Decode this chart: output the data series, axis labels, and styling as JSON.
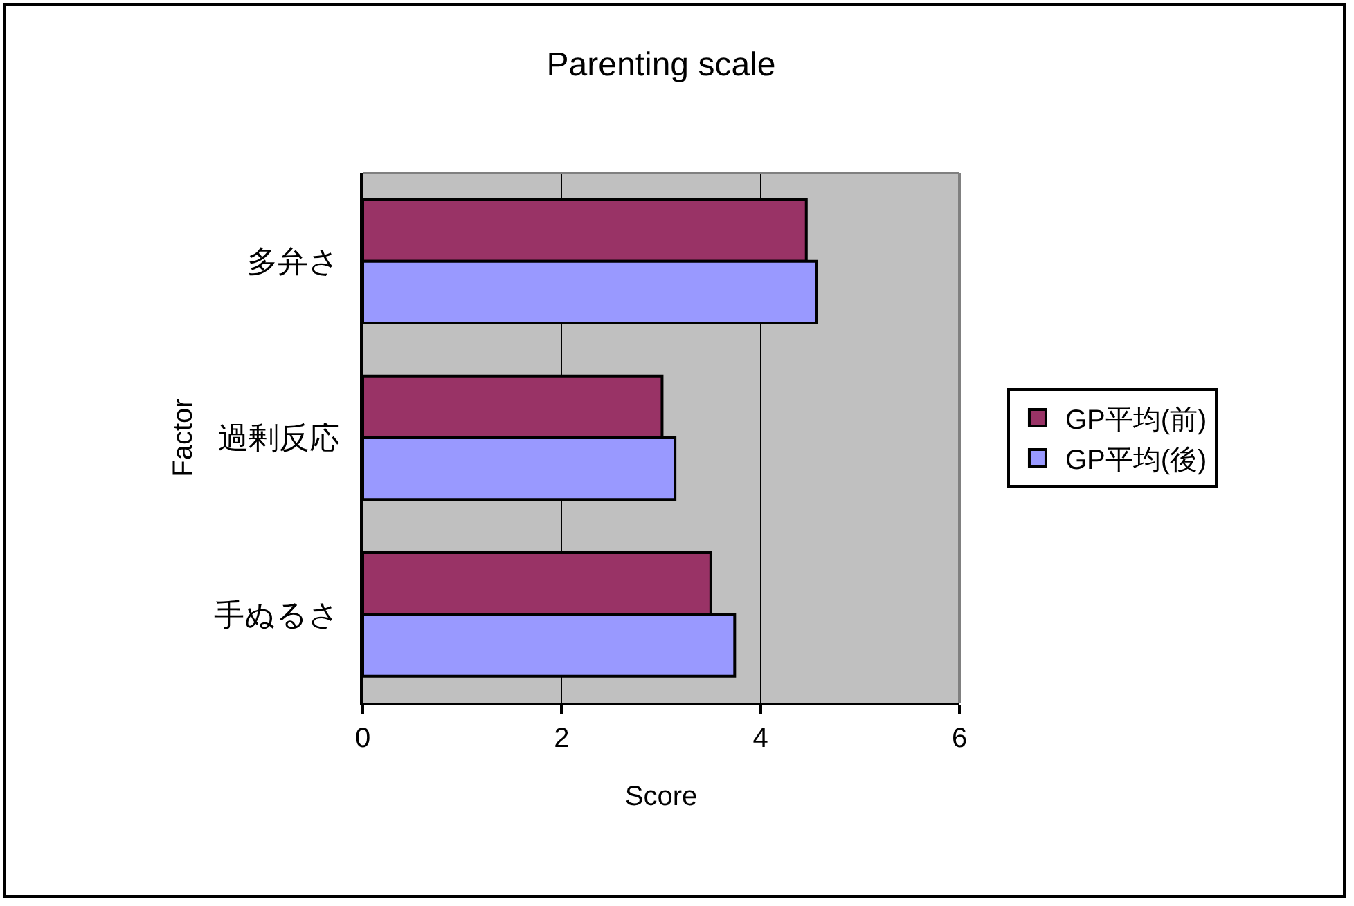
{
  "chart_data": {
    "type": "bar",
    "orientation": "horizontal",
    "title": "Parenting scale",
    "xlabel": "Score",
    "ylabel": "Factor",
    "categories": [
      "多弁さ",
      "過剰反応",
      "手ぬるさ"
    ],
    "series": [
      {
        "name": "GP平均(前)",
        "color": "#993366",
        "values": [
          4.46,
          3.01,
          3.5
        ]
      },
      {
        "name": "GP平均(後)",
        "color": "#9999ff",
        "values": [
          4.56,
          3.14,
          3.74
        ]
      }
    ],
    "xlim": [
      0,
      6
    ],
    "xticks": [
      0,
      2,
      4,
      6
    ],
    "grid": "x",
    "legend": "right"
  }
}
